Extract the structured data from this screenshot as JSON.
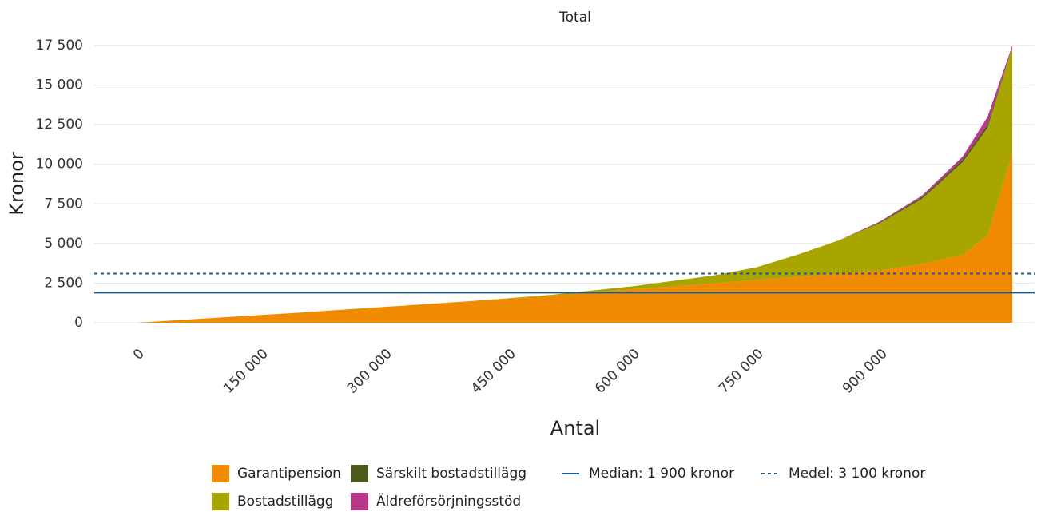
{
  "chart_data": {
    "type": "stacked_area",
    "title": "Total",
    "x_label": "Antal",
    "y_label": "Kronor",
    "x": [
      0,
      100000,
      200000,
      300000,
      400000,
      500000,
      600000,
      700000,
      750000,
      800000,
      850000,
      900000,
      950000,
      1000000,
      1030000,
      1060000
    ],
    "series": [
      {
        "name": "Garantipension",
        "color": "#f08a00",
        "values": [
          0,
          330,
          650,
          1000,
          1350,
          1700,
          2100,
          2500,
          2700,
          2900,
          3100,
          3300,
          3700,
          4300,
          5500,
          10700
        ]
      },
      {
        "name": "Bostadstillägg",
        "color": "#a8a400",
        "values": [
          0,
          0,
          0,
          0,
          0,
          50,
          200,
          500,
          800,
          1400,
          2100,
          3000,
          4100,
          5850,
          6800,
          6700
        ]
      },
      {
        "name": "Särskilt bostadstillägg",
        "color": "#4a5a1e",
        "values": [
          0,
          0,
          0,
          0,
          0,
          0,
          0,
          0,
          0,
          0,
          0,
          50,
          100,
          150,
          200,
          0
        ]
      },
      {
        "name": "Äldreförsörjningsstöd",
        "color": "#b8378a",
        "values": [
          0,
          0,
          0,
          0,
          0,
          0,
          0,
          0,
          0,
          0,
          0,
          50,
          100,
          200,
          500,
          100
        ]
      }
    ],
    "reference_lines": [
      {
        "name": "Median: 1 900 kronor",
        "value": 1900,
        "color": "#1f5a8a",
        "style": "solid"
      },
      {
        "name": "Medel: 3 100 kronor",
        "value": 3100,
        "color": "#1f5a8a",
        "style": "dotted"
      }
    ],
    "xlim": [
      -52000,
      1087000
    ],
    "ylim": [
      0,
      17500
    ],
    "xticks": [
      0,
      {
        "value": 150000,
        "label": "150 000"
      },
      {
        "value": 300000,
        "label": "300 000"
      },
      {
        "value": 450000,
        "label": "450 000"
      },
      {
        "value": 600000,
        "label": "600 000"
      },
      {
        "value": 750000,
        "label": "750 000"
      },
      {
        "value": 900000,
        "label": "900 000"
      }
    ],
    "yticks": [
      0,
      {
        "value": 2500,
        "label": "2 500"
      },
      {
        "value": 5000,
        "label": "5 000"
      },
      {
        "value": 7500,
        "label": "7 500"
      },
      {
        "value": 10000,
        "label": "10 000"
      },
      {
        "value": 12500,
        "label": "12 500"
      },
      {
        "value": 15000,
        "label": "15 000"
      },
      {
        "value": 17500,
        "label": "17 500"
      }
    ],
    "grid": true
  }
}
